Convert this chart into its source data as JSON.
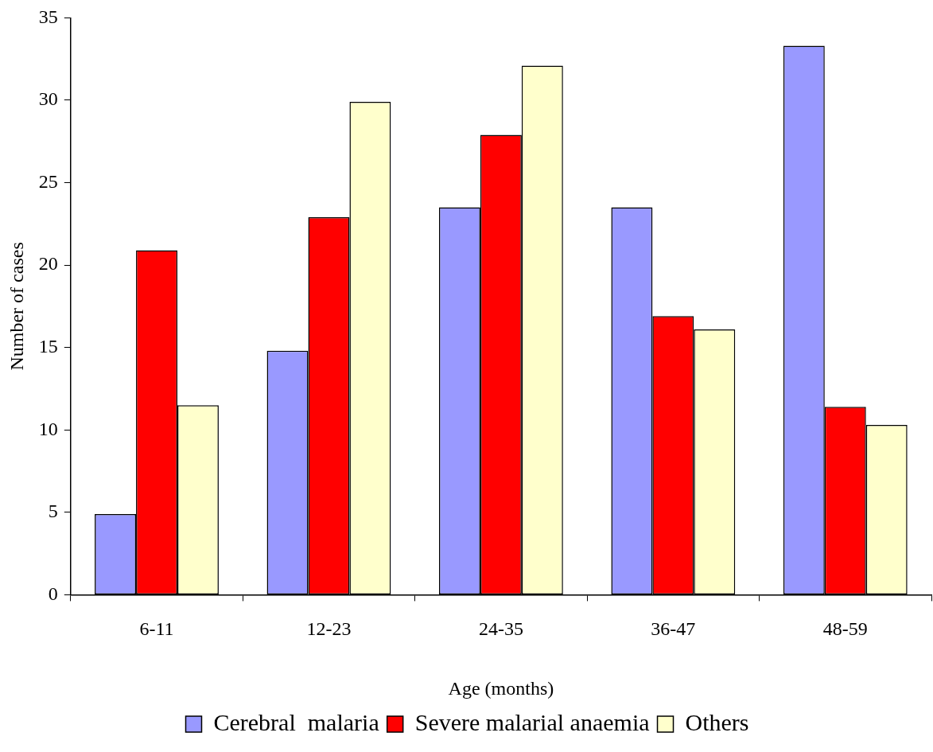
{
  "chart_data": {
    "type": "bar",
    "xlabel": "Age (months)",
    "ylabel": "Number of cases",
    "categories": [
      "6-11",
      "12-23",
      "24-35",
      "36-47",
      "48-59"
    ],
    "series": [
      {
        "name": "Cerebral  malaria",
        "color": "#9999ff",
        "values": [
          4.9,
          14.8,
          23.5,
          23.5,
          33.3
        ]
      },
      {
        "name": "Severe malarial anaemia",
        "color": "#ff0000",
        "values": [
          20.9,
          22.9,
          27.9,
          16.9,
          11.4
        ]
      },
      {
        "name": "Others",
        "color": "#ffffcc",
        "values": [
          11.5,
          29.9,
          32.1,
          16.1,
          10.3
        ]
      }
    ],
    "ylim": [
      0,
      35
    ],
    "yticks": [
      0,
      5,
      10,
      15,
      20,
      25,
      30,
      35
    ],
    "grid": false,
    "legend": "bottom"
  }
}
